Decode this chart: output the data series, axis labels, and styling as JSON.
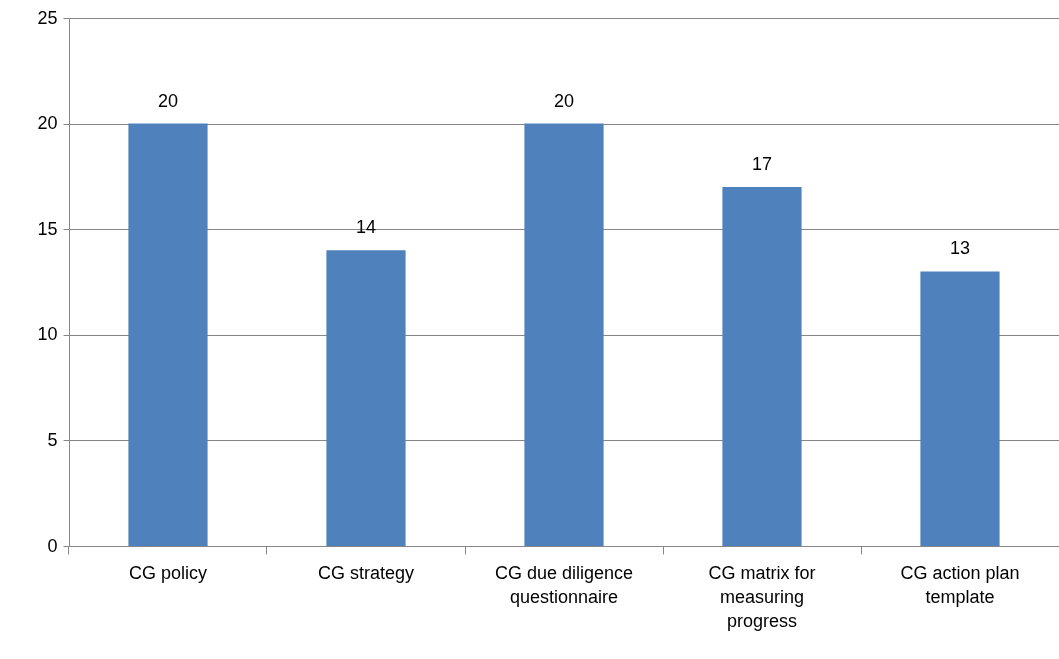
{
  "chart_data": {
    "type": "bar",
    "categories": [
      "CG policy",
      "CG strategy",
      "CG due diligence questionnaire",
      "CG matrix for measuring progress",
      "CG action plan template"
    ],
    "values": [
      20,
      14,
      20,
      17,
      13
    ],
    "color": "#4f81bd",
    "ylim": [
      0,
      25
    ],
    "yticks": [
      0,
      5,
      10,
      15,
      20,
      25
    ],
    "grid": "y",
    "data_labels": true
  }
}
